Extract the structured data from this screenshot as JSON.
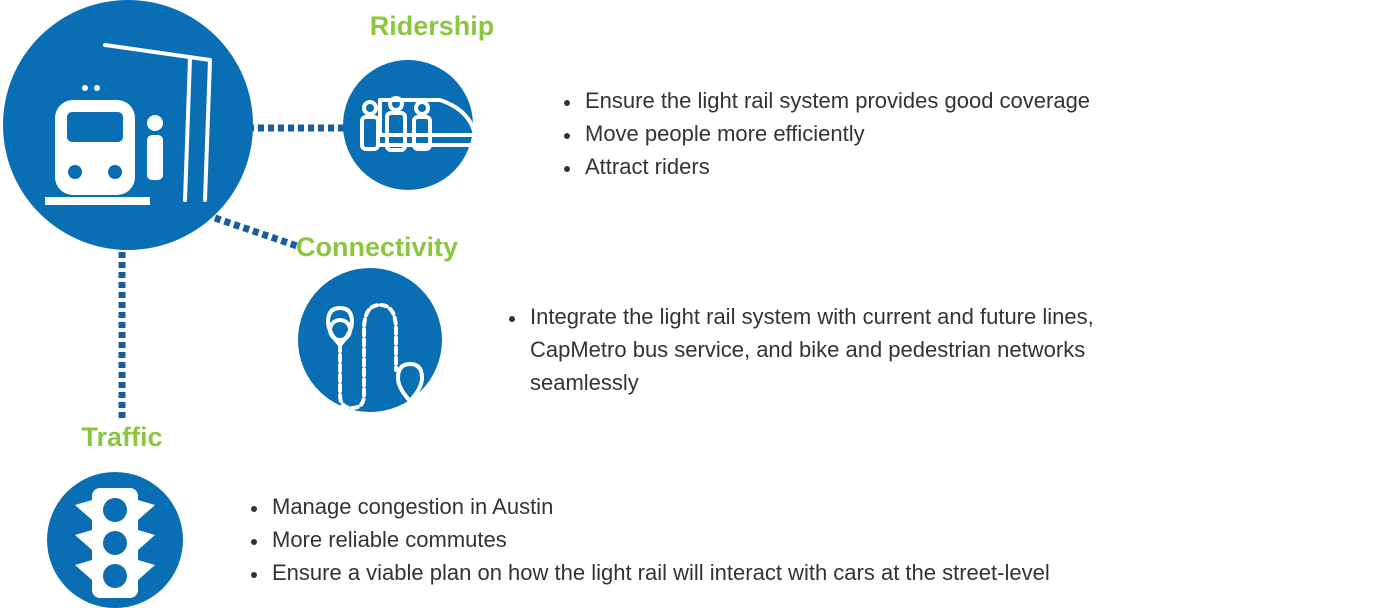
{
  "sections": [
    {
      "title": "Ridership",
      "bullets": [
        "Ensure the light rail system provides good coverage",
        "Move people more efficiently",
        "Attract riders"
      ]
    },
    {
      "title": "Connectivity",
      "bullets": [
        "Integrate the light rail system with current and future lines,",
        "CapMetro bus service, and bike and pedestrian networks",
        "seamlessly"
      ]
    },
    {
      "title": "Traffic",
      "bullets": [
        "Manage congestion in Austin",
        "More reliable commutes",
        "Ensure a viable plan on how the light rail will interact with cars at the street-level"
      ]
    }
  ]
}
